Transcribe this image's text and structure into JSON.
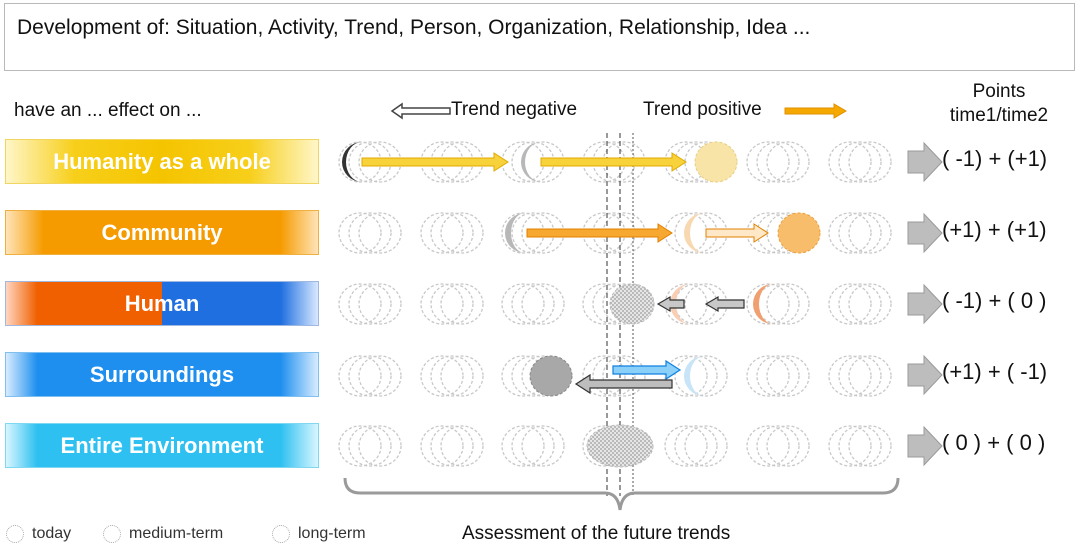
{
  "title": "Development of: Situation, Activity, Trend, Person, Organization, Relationship, Idea ...",
  "effect_label": "have an ... effect on ...",
  "trend_negative": "Trend negative",
  "trend_positive": "Trend positive",
  "points_header": {
    "line1": "Points",
    "line2": "time1/time2"
  },
  "rows": [
    {
      "label": "Humanity as a whole",
      "points": "( -1) + (+1)"
    },
    {
      "label": "Community",
      "points": "(+1) + (+1)"
    },
    {
      "label": "Human",
      "points": "( -1) + ( 0 )"
    },
    {
      "label": "Surroundings",
      "points": "(+1) + ( -1)"
    },
    {
      "label": "Entire Environment",
      "points": "( 0 ) + ( 0 )"
    }
  ],
  "assessment_label": "Assessment of the future trends",
  "legend": {
    "today": "today",
    "medium": "medium-term",
    "long": "long-term"
  },
  "colors": {
    "humanity": "#f5c400",
    "community": "#f59b00",
    "human_orange": "#f06000",
    "human_blue": "#1f6fe0",
    "surroundings": "#1e8fef",
    "environment": "#2ec0f0",
    "arrow_gray": "#a8a8a8"
  }
}
